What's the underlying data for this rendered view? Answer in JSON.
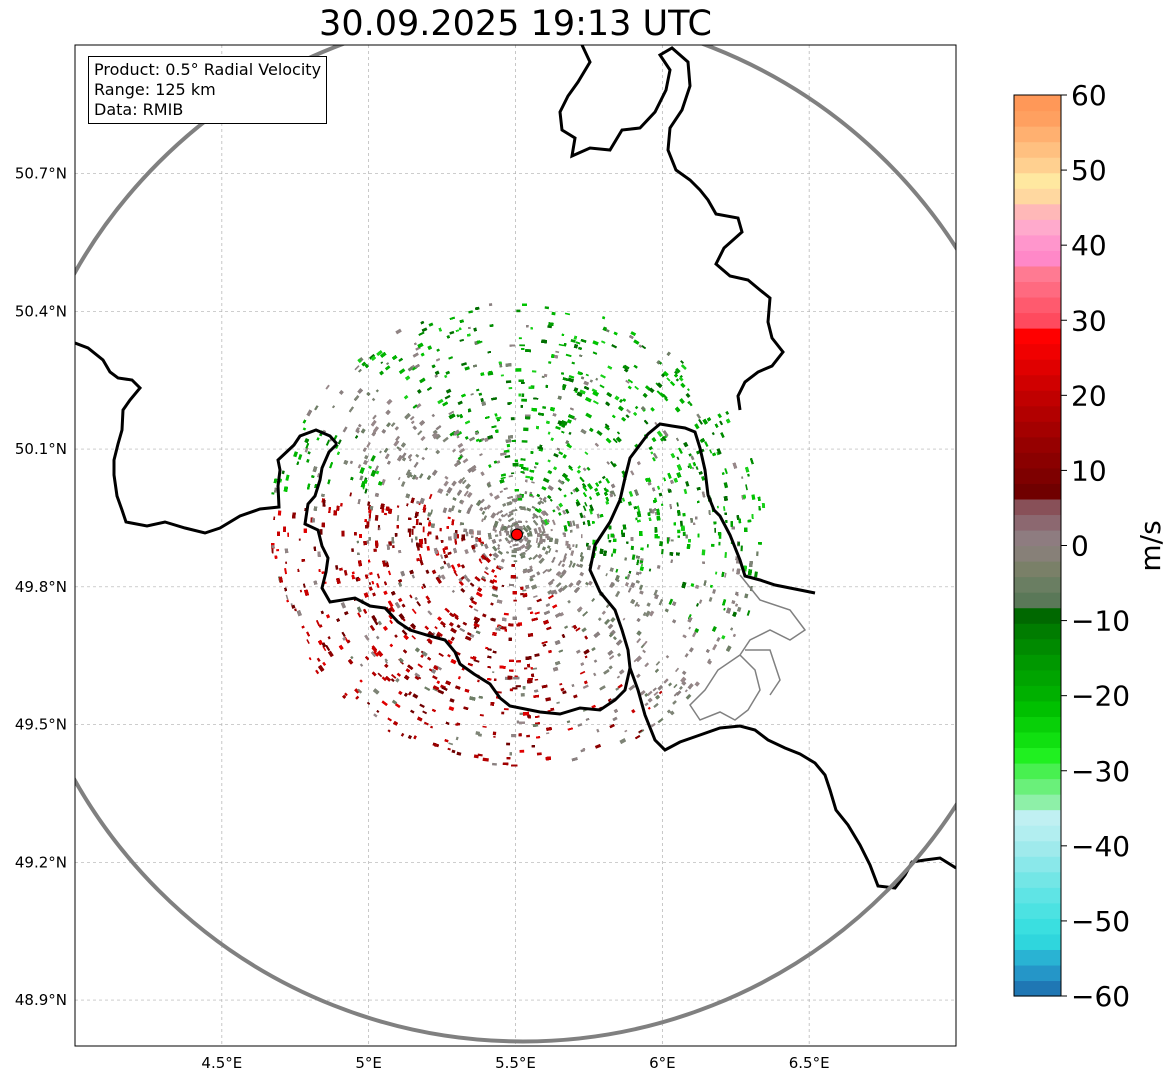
{
  "title": "30.09.2025 19:13 UTC",
  "info": {
    "product": "Product: 0.5° Radial Velocity",
    "range": "Range: 125 km",
    "data": "Data: RMIB"
  },
  "map_data": {
    "projection": "plate-carree",
    "lon_range": [
      4.0,
      7.0
    ],
    "lat_range": [
      48.8,
      50.98
    ],
    "lon_ticks": [
      {
        "v": 4.5,
        "label": "4.5°E"
      },
      {
        "v": 5.0,
        "label": "5°E"
      },
      {
        "v": 5.5,
        "label": "5.5°E"
      },
      {
        "v": 6.0,
        "label": "6°E"
      },
      {
        "v": 6.5,
        "label": "6.5°E"
      }
    ],
    "lat_ticks": [
      {
        "v": 50.7,
        "label": "50.7°N"
      },
      {
        "v": 50.4,
        "label": "50.4°N"
      },
      {
        "v": 50.1,
        "label": "50.1°N"
      },
      {
        "v": 49.8,
        "label": "49.8°N"
      },
      {
        "v": 49.5,
        "label": "49.5°N"
      },
      {
        "v": 49.2,
        "label": "49.2°N"
      },
      {
        "v": 48.9,
        "label": "48.9°N"
      }
    ],
    "radar_site": {
      "lon": 5.505,
      "lat": 49.914,
      "color": "#ff0000"
    },
    "range_ring_km": 125,
    "range_ring_color": "#808080",
    "velocity_regions": [
      {
        "name": "inbound-green-north",
        "color": "#00a000",
        "center": [
          5.6,
          50.25
        ]
      },
      {
        "name": "inbound-green-east",
        "color": "#00b400",
        "center": [
          5.95,
          49.95
        ]
      },
      {
        "name": "outbound-red-southwest",
        "color": "#b00000",
        "center": [
          5.2,
          49.7
        ]
      },
      {
        "name": "near-zero-gray",
        "color": "#888080",
        "center": [
          5.55,
          49.75
        ]
      }
    ]
  },
  "colorbar": {
    "label": "m/s",
    "min": -60,
    "max": 60,
    "ticks": [
      {
        "v": 60,
        "label": "60"
      },
      {
        "v": 50,
        "label": "50"
      },
      {
        "v": 40,
        "label": "40"
      },
      {
        "v": 30,
        "label": "30"
      },
      {
        "v": 20,
        "label": "20"
      },
      {
        "v": 10,
        "label": "10"
      },
      {
        "v": 0,
        "label": "0"
      },
      {
        "v": -10,
        "label": "−10"
      },
      {
        "v": -20,
        "label": "−20"
      },
      {
        "v": -30,
        "label": "−30"
      },
      {
        "v": -40,
        "label": "−40"
      },
      {
        "v": -50,
        "label": "−50"
      },
      {
        "v": -60,
        "label": "−60"
      }
    ],
    "colors_bottom_to_top": [
      "#1f77b4",
      "#2596c8",
      "#29b3d3",
      "#2fd6dd",
      "#3adfe0",
      "#4ce2e2",
      "#5fe4e5",
      "#73e6e6",
      "#8ae8ea",
      "#9feaec",
      "#b2eef0",
      "#c0f0f2",
      "#8ef0a8",
      "#6af07a",
      "#48f050",
      "#20f020",
      "#10e010",
      "#08d008",
      "#00c000",
      "#00b000",
      "#00a400",
      "#009800",
      "#008a00",
      "#007c00",
      "#006800",
      "#5a7858",
      "#6a7e62",
      "#7a8068",
      "#878078",
      "#8e7c80",
      "#8c6870",
      "#885058",
      "#700000",
      "#7e0000",
      "#8a0000",
      "#960000",
      "#a40000",
      "#b20000",
      "#c00000",
      "#d00000",
      "#e00000",
      "#f00000",
      "#ff0000",
      "#ff4a5e",
      "#ff5a6e",
      "#ff6a80",
      "#ff7a92",
      "#ff88c8",
      "#ff96cc",
      "#ffaacc",
      "#ffb8b8",
      "#ffd8a0",
      "#ffe8a0",
      "#ffd090",
      "#ffc080",
      "#ffb070",
      "#ffa060",
      "#ff9858"
    ]
  }
}
